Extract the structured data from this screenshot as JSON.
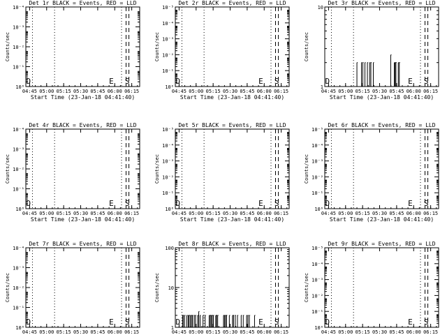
{
  "figure": {
    "background": "#ffffff",
    "foreground": "#000000"
  },
  "chart_data": [
    {
      "type": "line",
      "title": "Det 1r BLACK = Events, RED = LLD",
      "xlabel": "Start Time (23-Jan-18 04:41:40)",
      "ylabel": "Counts/sec",
      "x_ticks": [
        "04:45",
        "05:00",
        "05:15",
        "05:30",
        "05:45",
        "06:00",
        "06:15"
      ],
      "y_scale": "log",
      "y_tick_labels": [
        "10⁰",
        "10⁻¹",
        "10⁻²",
        "10⁻³",
        "10⁻⁴"
      ],
      "ylim": [
        1e-05,
        1
      ],
      "xlim": [
        "04:41:40",
        "06:22:00"
      ],
      "annotations": [
        {
          "x": "04:44:00",
          "text": "D"
        },
        {
          "x": "05:57:00",
          "text": "E"
        },
        {
          "x": "06:11:00",
          "text": "S"
        }
      ],
      "event_lines": [
        {
          "x": "04:47:30",
          "style": "dotted"
        },
        {
          "x": "05:07:00",
          "style": "dotted"
        },
        {
          "x": "06:06:00",
          "style": "dotted"
        },
        {
          "x": "06:10:00",
          "style": "dashed"
        },
        {
          "x": "06:12:30",
          "style": "dashed"
        }
      ],
      "series": []
    },
    {
      "type": "line",
      "title": "Det 2r BLACK = Events, RED = LLD",
      "xlabel": "Start Time (23-Jan-18 04:41:40)",
      "ylabel": "Counts/sec",
      "x_ticks": [
        "04:45",
        "05:00",
        "05:15",
        "05:30",
        "05:45",
        "06:00",
        "06:15"
      ],
      "y_scale": "log",
      "y_tick_labels": [
        "10⁰",
        "10⁻¹",
        "10⁻²",
        "10⁻³",
        "10⁻⁴",
        "10⁻⁵"
      ],
      "ylim": [
        1e-06,
        1
      ],
      "xlim": [
        "04:41:40",
        "06:22:00"
      ],
      "annotations": [
        {
          "x": "04:44:00",
          "text": "D"
        },
        {
          "x": "05:57:00",
          "text": "E"
        },
        {
          "x": "06:11:00",
          "text": "S"
        }
      ],
      "event_lines": [
        {
          "x": "04:47:30",
          "style": "dotted"
        },
        {
          "x": "05:07:00",
          "style": "dotted"
        },
        {
          "x": "06:06:00",
          "style": "dotted"
        },
        {
          "x": "06:10:00",
          "style": "dashed"
        },
        {
          "x": "06:12:30",
          "style": "dashed"
        }
      ],
      "series": []
    },
    {
      "type": "line",
      "title": "Det 3r BLACK = Events, RED = LLD",
      "xlabel": "Start Time (23-Jan-18 04:41:40)",
      "ylabel": "Counts/sec",
      "x_ticks": [
        "04:45",
        "05:00",
        "05:15",
        "05:30",
        "05:45",
        "06:00",
        "06:15"
      ],
      "y_scale": "log",
      "y_tick_labels": [
        "1",
        "10"
      ],
      "ylim": [
        1,
        10
      ],
      "xlim": [
        "04:41:40",
        "06:22:00"
      ],
      "annotations": [
        {
          "x": "04:44:00",
          "text": "D"
        },
        {
          "x": "05:57:00",
          "text": "E"
        },
        {
          "x": "06:11:00",
          "text": "S"
        }
      ],
      "event_lines": [
        {
          "x": "04:47:30",
          "style": "dotted"
        },
        {
          "x": "05:07:00",
          "style": "dotted"
        },
        {
          "x": "06:06:00",
          "style": "dotted"
        },
        {
          "x": "06:10:00",
          "style": "dashed"
        },
        {
          "x": "06:12:30",
          "style": "dashed"
        }
      ],
      "series": [
        {
          "name": "Events",
          "color": "#000000",
          "bursts": [
            [
              "05:10",
              "05:25"
            ],
            [
              "05:37",
              "05:48"
            ]
          ],
          "low": 1,
          "high": 2
        }
      ]
    },
    {
      "type": "line",
      "title": "Det 4r BLACK = Events, RED = LLD",
      "xlabel": "Start Time (23-Jan-18 04:41:40)",
      "ylabel": "Counts/sec",
      "x_ticks": [
        "04:45",
        "05:00",
        "05:15",
        "05:30",
        "05:45",
        "06:00",
        "06:15"
      ],
      "y_scale": "log",
      "y_tick_labels": [
        "10⁰",
        "10⁻¹",
        "10⁻²",
        "10⁻³",
        "10⁻⁴"
      ],
      "ylim": [
        1e-05,
        1
      ],
      "xlim": [
        "04:41:40",
        "06:22:00"
      ],
      "annotations": [
        {
          "x": "04:44:00",
          "text": "D"
        },
        {
          "x": "05:57:00",
          "text": "E"
        },
        {
          "x": "06:11:00",
          "text": "S"
        }
      ],
      "event_lines": [
        {
          "x": "04:47:30",
          "style": "dotted"
        },
        {
          "x": "05:07:00",
          "style": "dotted"
        },
        {
          "x": "06:06:00",
          "style": "dotted"
        },
        {
          "x": "06:10:00",
          "style": "dashed"
        },
        {
          "x": "06:12:30",
          "style": "dashed"
        }
      ],
      "series": []
    },
    {
      "type": "line",
      "title": "Det 5r BLACK = Events, RED = LLD",
      "xlabel": "Start Time (23-Jan-18 04:41:40)",
      "ylabel": "Counts/sec",
      "x_ticks": [
        "04:45",
        "05:00",
        "05:15",
        "05:30",
        "05:45",
        "06:00",
        "06:15"
      ],
      "y_scale": "log",
      "y_tick_labels": [
        "10⁰",
        "10⁻¹",
        "10⁻²",
        "10⁻³",
        "10⁻⁴",
        "10⁻⁵"
      ],
      "ylim": [
        1e-06,
        1
      ],
      "xlim": [
        "04:41:40",
        "06:22:00"
      ],
      "annotations": [
        {
          "x": "04:44:00",
          "text": "D"
        },
        {
          "x": "05:57:00",
          "text": "E"
        },
        {
          "x": "06:11:00",
          "text": "S"
        }
      ],
      "event_lines": [
        {
          "x": "04:47:30",
          "style": "dotted"
        },
        {
          "x": "05:07:00",
          "style": "dotted"
        },
        {
          "x": "06:06:00",
          "style": "dotted"
        },
        {
          "x": "06:10:00",
          "style": "dashed"
        },
        {
          "x": "06:12:30",
          "style": "dashed"
        }
      ],
      "series": []
    },
    {
      "type": "line",
      "title": "Det 6r BLACK = Events, RED = LLD",
      "xlabel": "Start Time (23-Jan-18 04:41:40)",
      "ylabel": "Counts/sec",
      "x_ticks": [
        "04:45",
        "05:00",
        "05:15",
        "05:30",
        "05:45",
        "06:00",
        "06:15"
      ],
      "y_scale": "log",
      "y_tick_labels": [
        "10⁰",
        "10⁻¹",
        "10⁻²",
        "10⁻³",
        "10⁻⁴",
        "10⁻⁵"
      ],
      "ylim": [
        1e-06,
        1
      ],
      "xlim": [
        "04:41:40",
        "06:22:00"
      ],
      "annotations": [
        {
          "x": "04:44:00",
          "text": "D"
        },
        {
          "x": "05:57:00",
          "text": "E"
        },
        {
          "x": "06:11:00",
          "text": "S"
        }
      ],
      "event_lines": [
        {
          "x": "04:47:30",
          "style": "dotted"
        },
        {
          "x": "05:07:00",
          "style": "dotted"
        },
        {
          "x": "06:06:00",
          "style": "dotted"
        },
        {
          "x": "06:10:00",
          "style": "dashed"
        },
        {
          "x": "06:12:30",
          "style": "dashed"
        }
      ],
      "series": []
    },
    {
      "type": "line",
      "title": "Det 7r BLACK = Events, RED = LLD",
      "xlabel": "Start Time (23-Jan-18 04:41:40)",
      "ylabel": "Counts/sec",
      "x_ticks": [
        "04:45",
        "05:00",
        "05:15",
        "05:30",
        "05:45",
        "06:00",
        "06:15"
      ],
      "y_scale": "log",
      "y_tick_labels": [
        "10⁰",
        "10⁻¹",
        "10⁻²",
        "10⁻³",
        "10⁻⁴"
      ],
      "ylim": [
        1e-05,
        1
      ],
      "xlim": [
        "04:41:40",
        "06:22:00"
      ],
      "annotations": [
        {
          "x": "04:44:00",
          "text": "D"
        },
        {
          "x": "05:57:00",
          "text": "E"
        },
        {
          "x": "06:11:00",
          "text": "S"
        }
      ],
      "event_lines": [
        {
          "x": "04:47:30",
          "style": "dotted"
        },
        {
          "x": "05:07:00",
          "style": "dotted"
        },
        {
          "x": "06:06:00",
          "style": "dotted"
        },
        {
          "x": "06:10:00",
          "style": "dashed"
        },
        {
          "x": "06:12:30",
          "style": "dashed"
        }
      ],
      "series": []
    },
    {
      "type": "line",
      "title": "Det 8r BLACK = Events, RED = LLD",
      "xlabel": "Start Time (23-Jan-18 04:41:40)",
      "ylabel": "Counts/sec",
      "x_ticks": [
        "04:45",
        "05:00",
        "05:15",
        "05:30",
        "05:45",
        "06:00",
        "06:15"
      ],
      "y_scale": "log",
      "y_tick_labels": [
        "1",
        "10",
        "100"
      ],
      "ylim": [
        1,
        100
      ],
      "xlim": [
        "04:41:40",
        "06:22:00"
      ],
      "annotations": [
        {
          "x": "04:44:00",
          "text": "D"
        },
        {
          "x": "05:57:00",
          "text": "E"
        },
        {
          "x": "06:11:00",
          "text": "S"
        }
      ],
      "event_lines": [
        {
          "x": "04:47:30",
          "style": "dotted"
        },
        {
          "x": "05:07:00",
          "style": "dotted"
        },
        {
          "x": "06:06:00",
          "style": "dotted"
        },
        {
          "x": "06:10:00",
          "style": "dashed"
        },
        {
          "x": "06:12:30",
          "style": "dashed"
        }
      ],
      "series": [
        {
          "name": "Events",
          "color": "#000000",
          "bursts": [
            [
              "04:48",
              "05:52"
            ]
          ],
          "low": 1,
          "high": 2
        }
      ]
    },
    {
      "type": "line",
      "title": "Det 9r BLACK = Events, RED = LLD",
      "xlabel": "Start Time (23-Jan-18 04:41:40)",
      "ylabel": "Counts/sec",
      "x_ticks": [
        "04:45",
        "05:00",
        "05:15",
        "05:30",
        "05:45",
        "06:00",
        "06:15"
      ],
      "y_scale": "log",
      "y_tick_labels": [
        "10⁰",
        "10⁻¹",
        "10⁻²",
        "10⁻³",
        "10⁻⁴",
        "10⁻⁵"
      ],
      "ylim": [
        1e-06,
        1
      ],
      "xlim": [
        "04:41:40",
        "06:22:00"
      ],
      "annotations": [
        {
          "x": "04:44:00",
          "text": "D"
        },
        {
          "x": "05:57:00",
          "text": "E"
        },
        {
          "x": "06:11:00",
          "text": "S"
        }
      ],
      "event_lines": [
        {
          "x": "04:47:30",
          "style": "dotted"
        },
        {
          "x": "05:07:00",
          "style": "dotted"
        },
        {
          "x": "06:06:00",
          "style": "dotted"
        },
        {
          "x": "06:10:00",
          "style": "dashed"
        },
        {
          "x": "06:12:30",
          "style": "dashed"
        }
      ],
      "series": []
    }
  ]
}
